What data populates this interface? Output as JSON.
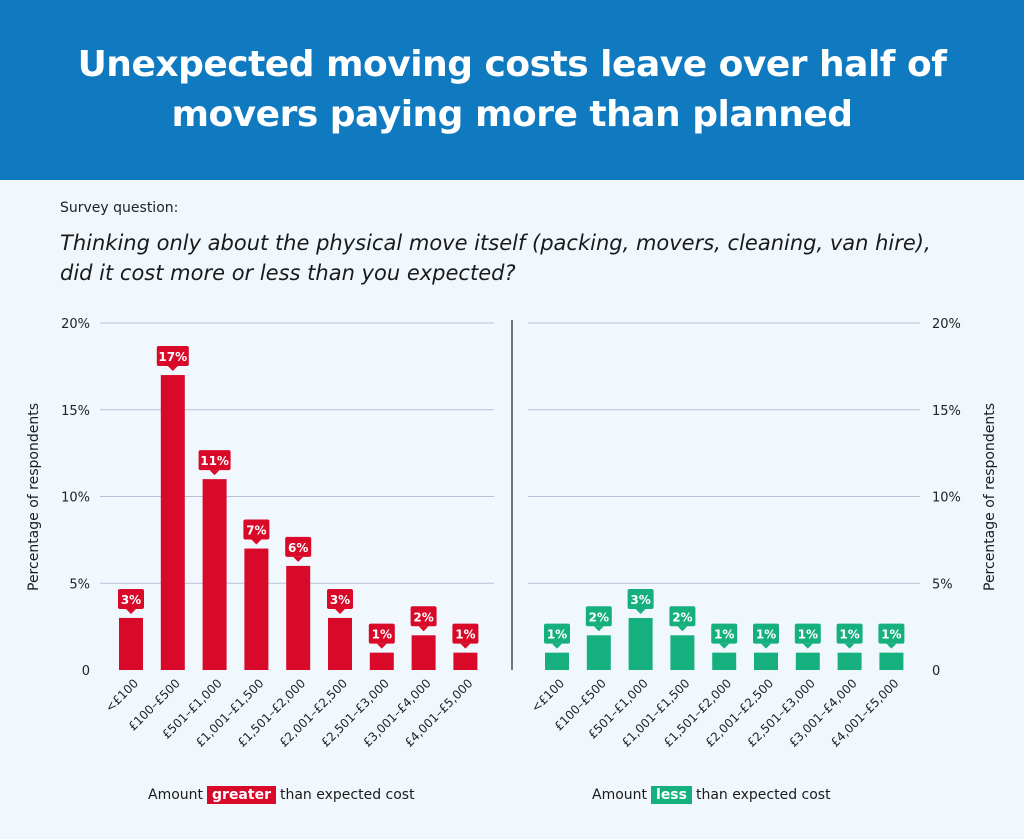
{
  "header": {
    "title": "Unexpected moving costs leave over half of movers paying more than planned"
  },
  "survey": {
    "label": "Survey question:",
    "question": "Thinking only about the physical move itself (packing, movers, cleaning, van hire), did it cost more or less than you expected?"
  },
  "colors": {
    "greater": "#d9092a",
    "less": "#16b07f",
    "banner": "#0f7ac0"
  },
  "chart_data": [
    {
      "type": "bar",
      "ylabel": "Percentage of respondents",
      "ylim": [
        0,
        20
      ],
      "yticks": [
        "0",
        "5%",
        "10%",
        "15%",
        "20%"
      ],
      "categories": [
        "<£100",
        "£100–£500",
        "£501–£1,000",
        "£1,001–£1,500",
        "£1,501–£2,000",
        "£2,001–£2,500",
        "£2,501–£3,000",
        "£3,001–£4,000",
        "£4,001–£5,000"
      ],
      "values": [
        3,
        17,
        11,
        7,
        6,
        3,
        1,
        2,
        1
      ],
      "data_labels": [
        "3%",
        "17%",
        "11%",
        "7%",
        "6%",
        "3%",
        "1%",
        "2%",
        "1%"
      ],
      "xlabel_prefix": "Amount",
      "xlabel_highlight": "greater",
      "xlabel_suffix": "than expected cost",
      "grid": true
    },
    {
      "type": "bar",
      "ylabel": "Percentage of respondents",
      "ylim": [
        0,
        20
      ],
      "yticks": [
        "0",
        "5%",
        "10%",
        "15%",
        "20%"
      ],
      "categories": [
        "<£100",
        "£100–£500",
        "£501–£1,000",
        "£1,001–£1,500",
        "£1,501–£2,000",
        "£2,001–£2,500",
        "£2,501–£3,000",
        "£3,001–£4,000",
        "£4,001–£5,000"
      ],
      "values": [
        1,
        2,
        3,
        2,
        1,
        1,
        1,
        1,
        1
      ],
      "data_labels": [
        "1%",
        "2%",
        "3%",
        "2%",
        "1%",
        "1%",
        "1%",
        "1%",
        "1%"
      ],
      "xlabel_prefix": "Amount",
      "xlabel_highlight": "less",
      "xlabel_suffix": "than expected cost",
      "grid": true
    }
  ]
}
